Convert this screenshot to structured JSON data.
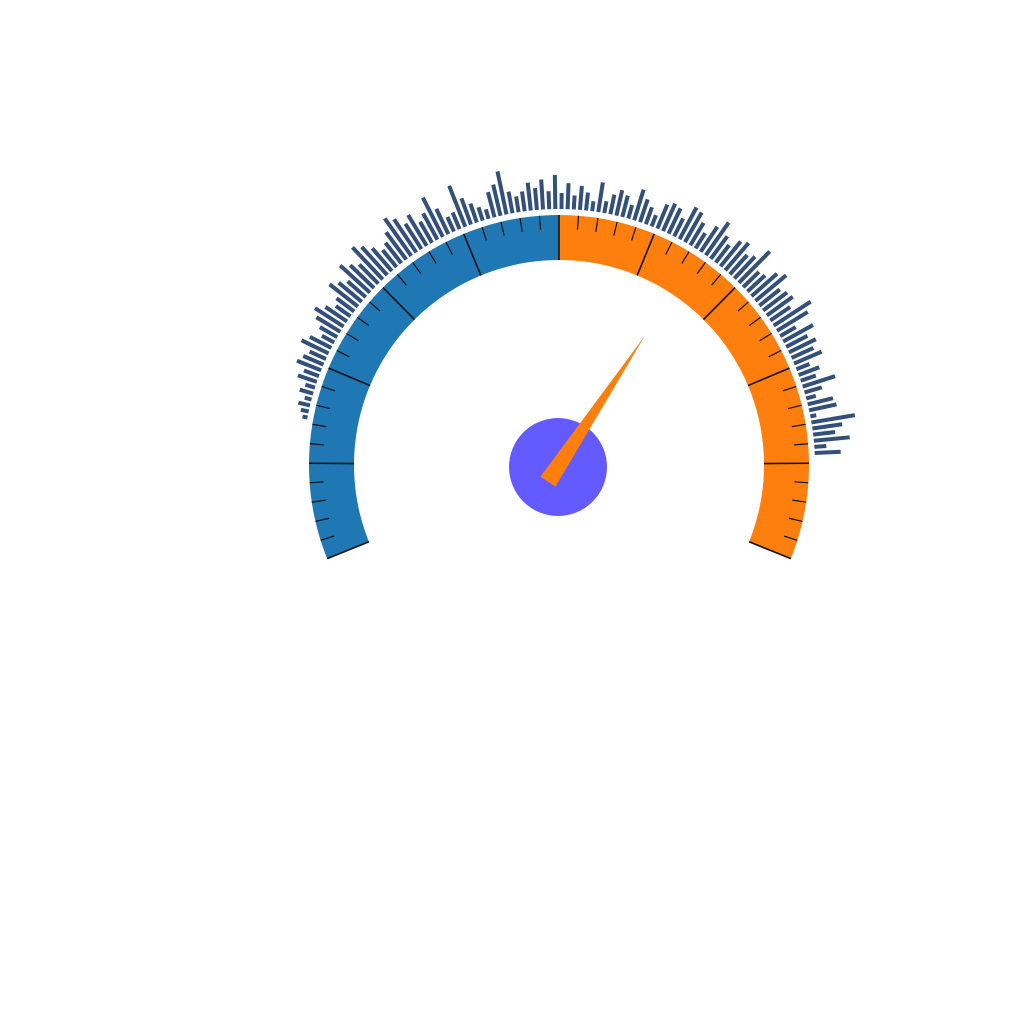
{
  "chart_data": {
    "type": "gauge",
    "title": "",
    "range": [
      0,
      100
    ],
    "start_angle_deg": -112,
    "end_angle_deg": 112,
    "value": 65,
    "major_tick_step": 10,
    "minor_ticks_per_major": 5,
    "bands": [
      {
        "from": 0,
        "to": 50,
        "color": "#1f77b4"
      },
      {
        "from": 50,
        "to": 100,
        "color": "#ff7f0e"
      }
    ],
    "pointer_color": "#ff7f0e",
    "hub_color": "#635bff",
    "bar_color": "#33507a",
    "tick_color": "#111111",
    "bars": [
      5,
      8,
      12,
      7,
      14,
      10,
      20,
      16,
      26,
      22,
      18,
      30,
      24,
      14,
      20,
      28,
      34,
      26,
      18,
      22,
      36,
      30,
      24,
      40,
      33,
      27,
      44,
      38,
      30,
      22,
      26,
      34,
      46,
      40,
      30,
      36,
      24,
      30,
      44,
      28,
      16,
      18,
      44,
      28,
      20,
      14,
      10,
      26,
      32,
      44,
      22,
      16,
      20,
      28,
      22,
      30,
      18,
      34,
      16,
      26,
      14,
      24,
      18,
      10,
      30,
      12,
      20,
      26,
      22,
      14,
      32,
      24,
      18,
      12,
      26,
      30,
      28,
      20,
      36,
      34,
      26,
      18,
      30,
      40,
      28,
      22,
      32,
      36,
      26,
      30,
      44,
      22,
      24,
      34,
      40,
      26,
      30,
      32,
      24,
      44,
      36,
      18,
      34,
      24,
      30,
      24,
      30,
      14,
      22,
      16,
      34,
      18,
      10,
      26,
      28,
      6,
      44,
      30,
      22,
      36,
      12,
      26
    ]
  }
}
